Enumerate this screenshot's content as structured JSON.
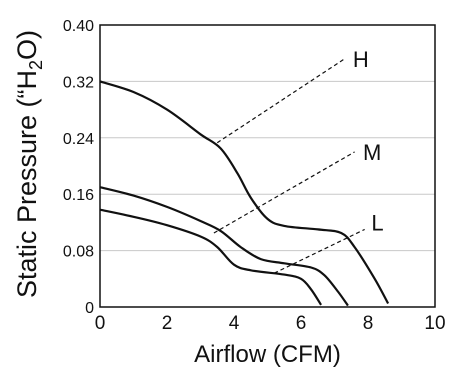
{
  "chart_data": {
    "type": "line",
    "title": "",
    "xlabel": "Airflow (CFM)",
    "ylabel_parts": [
      "Static Pressure (“H",
      "2",
      "O)"
    ],
    "xlim": [
      0,
      10
    ],
    "ylim": [
      0,
      0.4
    ],
    "xticks": [
      0,
      2,
      4,
      6,
      8,
      10
    ],
    "xtick_labels": [
      "0",
      "2",
      "4",
      "6",
      "8",
      "10"
    ],
    "yticks": [
      0,
      0.08,
      0.16,
      0.24,
      0.32,
      0.4
    ],
    "ytick_labels": [
      "0",
      "0.08",
      "0.16",
      "0.24",
      "0.32",
      "0.40"
    ],
    "grid": "horizontal",
    "series": [
      {
        "name": "H",
        "points": [
          [
            0,
            0.32
          ],
          [
            1,
            0.305
          ],
          [
            2,
            0.28
          ],
          [
            3,
            0.245
          ],
          [
            3.6,
            0.225
          ],
          [
            4.1,
            0.19
          ],
          [
            4.5,
            0.155
          ],
          [
            5,
            0.125
          ],
          [
            5.5,
            0.115
          ],
          [
            6.5,
            0.11
          ],
          [
            7.2,
            0.105
          ],
          [
            7.6,
            0.085
          ],
          [
            8.2,
            0.04
          ],
          [
            8.6,
            0.005
          ]
        ]
      },
      {
        "name": "M",
        "points": [
          [
            0,
            0.17
          ],
          [
            1,
            0.158
          ],
          [
            2,
            0.142
          ],
          [
            3,
            0.122
          ],
          [
            3.6,
            0.108
          ],
          [
            4.2,
            0.085
          ],
          [
            4.8,
            0.068
          ],
          [
            5.5,
            0.062
          ],
          [
            6.3,
            0.056
          ],
          [
            6.7,
            0.045
          ],
          [
            7.1,
            0.022
          ],
          [
            7.4,
            0.002
          ]
        ]
      },
      {
        "name": "L",
        "points": [
          [
            0,
            0.138
          ],
          [
            1,
            0.128
          ],
          [
            2,
            0.116
          ],
          [
            3,
            0.1
          ],
          [
            3.5,
            0.085
          ],
          [
            4,
            0.06
          ],
          [
            4.5,
            0.052
          ],
          [
            5.5,
            0.046
          ],
          [
            6,
            0.04
          ],
          [
            6.3,
            0.025
          ],
          [
            6.6,
            0.003
          ]
        ]
      }
    ],
    "annotations": [
      {
        "label": "H",
        "from": [
          3.5,
          0.233
        ],
        "to": [
          7.3,
          0.352
        ],
        "text_at": [
          7.55,
          0.352
        ]
      },
      {
        "label": "M",
        "from": [
          3.4,
          0.105
        ],
        "to": [
          7.6,
          0.22
        ],
        "text_at": [
          7.85,
          0.22
        ]
      },
      {
        "label": "L",
        "from": [
          5.2,
          0.048
        ],
        "to": [
          7.9,
          0.11
        ],
        "text_at": [
          8.1,
          0.12
        ]
      }
    ]
  }
}
